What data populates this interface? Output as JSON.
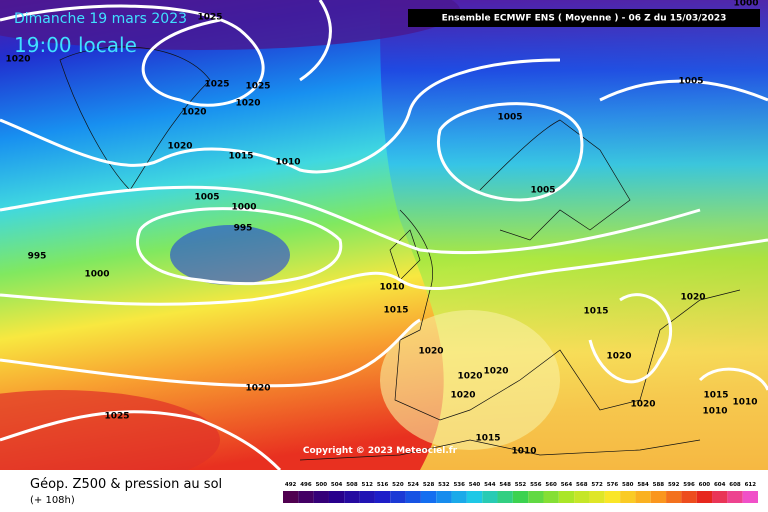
{
  "header": {
    "date": "Dimanche 19 mars 2023",
    "time": "19:00 locale",
    "model": "Ensemble ECMWF ENS  ( Moyenne )  - 06 Z du 15/03/2023"
  },
  "copyright": "Copyright © 2023 Meteociel.fr",
  "footer": {
    "title": "Géop. Z500 & pression au sol",
    "lead": "(+ 108h)"
  },
  "scale": [
    492,
    496,
    500,
    504,
    508,
    512,
    516,
    520,
    524,
    528,
    532,
    536,
    540,
    544,
    548,
    552,
    556,
    560,
    564,
    568,
    572,
    576,
    580,
    584,
    588,
    592,
    596,
    600,
    604,
    608,
    612
  ],
  "isobar_labels": [
    1025,
    1020,
    1025,
    1025,
    1020,
    1020,
    1020,
    1015,
    1010,
    1005,
    1000,
    995,
    995,
    1000,
    1005,
    1005,
    1005,
    1000,
    1010,
    1015,
    1020,
    1020,
    1020,
    1020,
    1015,
    1020,
    1020,
    1020,
    1015,
    1010,
    1010,
    1020,
    1025,
    1015,
    1010
  ]
}
